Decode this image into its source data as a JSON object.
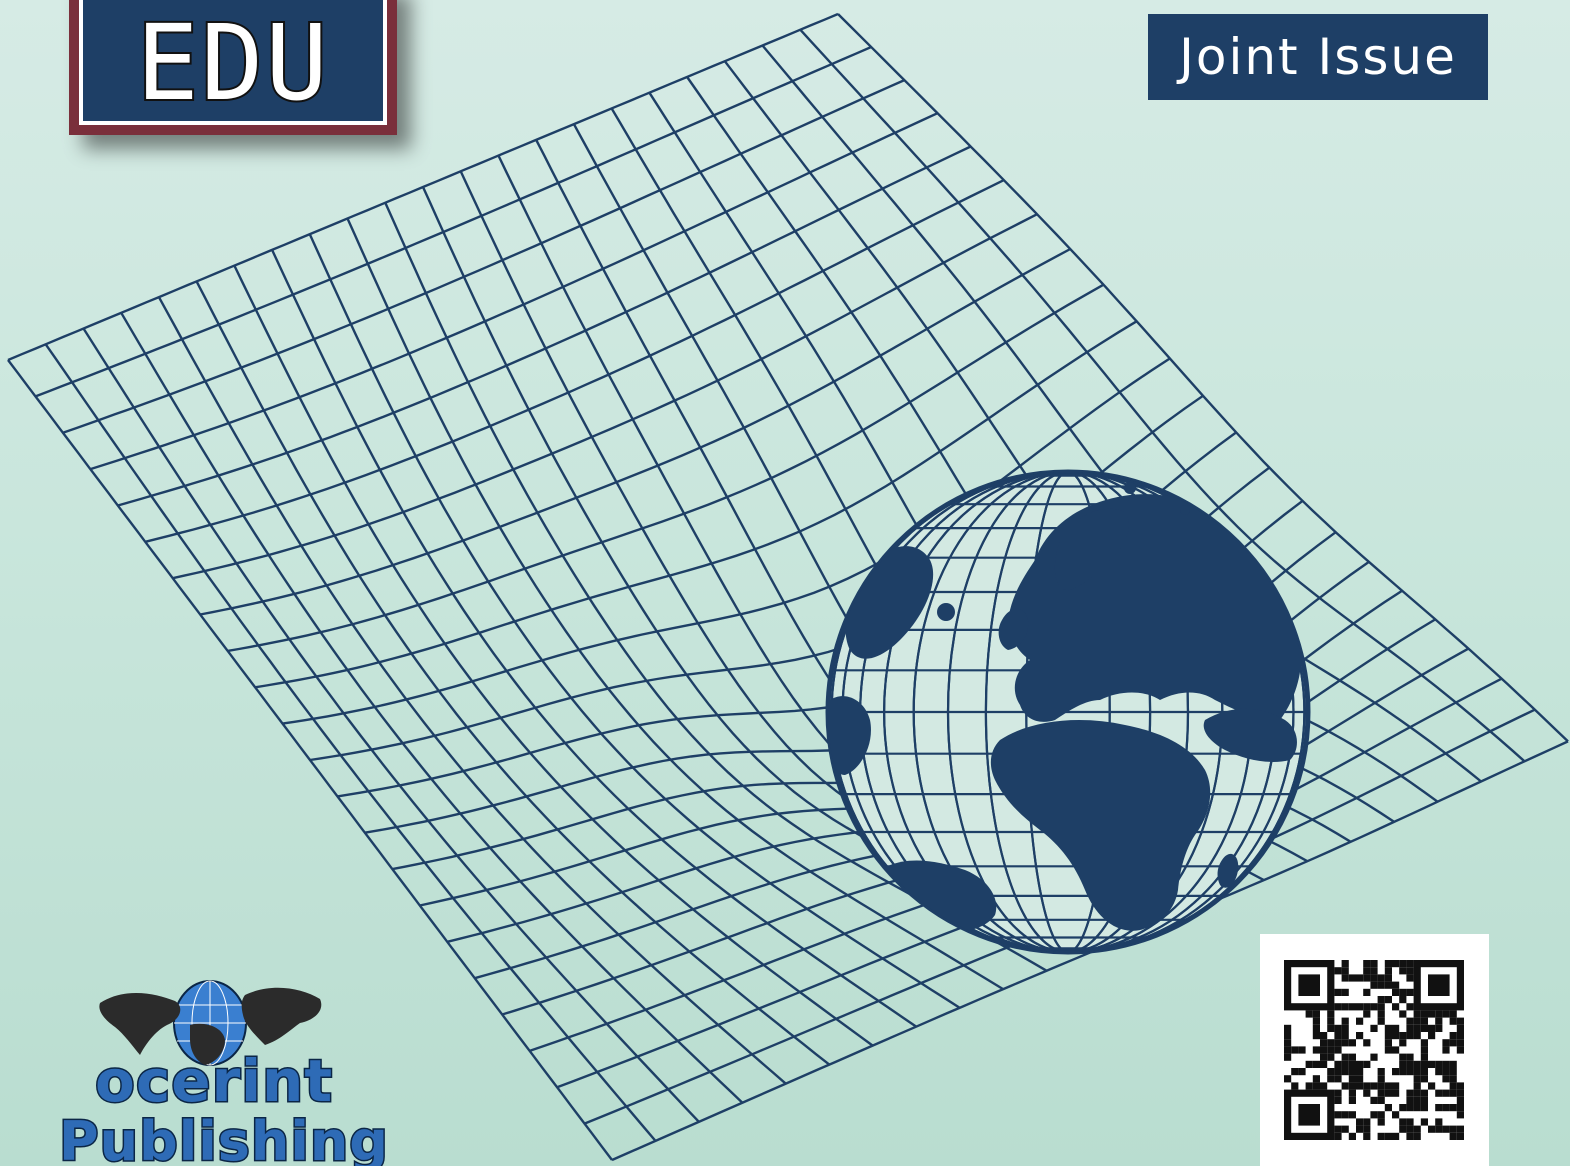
{
  "cover": {
    "logo_text": "EDU",
    "badge_text": "Joint Issue"
  },
  "publisher": {
    "name": "ocerint",
    "sub": "Publishing"
  },
  "colors": {
    "navy": "#1e3f66",
    "maroon": "#7a2f3b",
    "mesh": "#1e3f66",
    "background": "#c9e6dc"
  },
  "icons": {
    "globe": "globe-icon",
    "qr": "qr-code-icon"
  }
}
